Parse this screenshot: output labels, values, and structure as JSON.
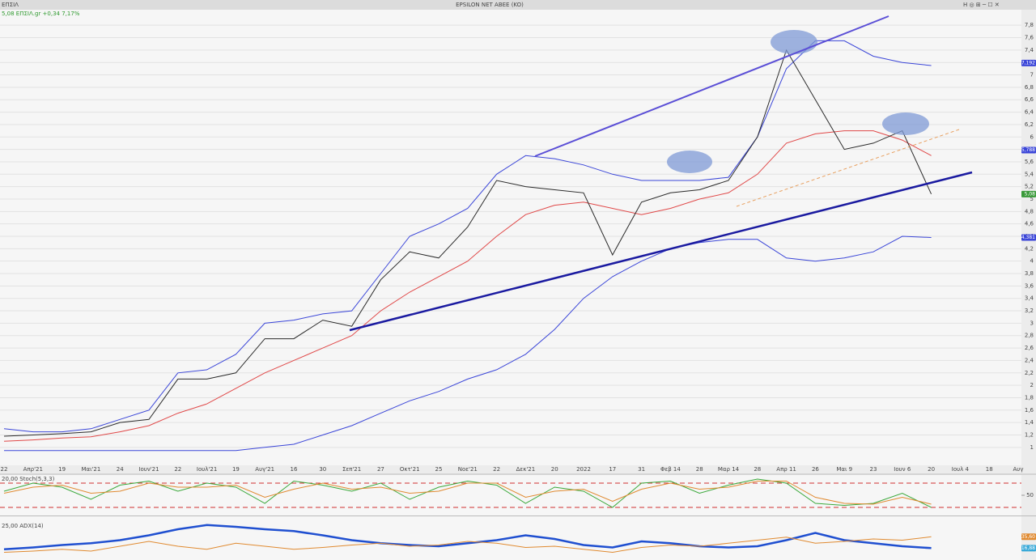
{
  "header": {
    "symbol": "ΕΠΣΙΛ",
    "title": "EPSILON NET ABEE (KO)",
    "legend_text": "5,08 ΕΠΣΙΛ.gr +0,34 7,17%"
  },
  "chart_data": [
    {
      "type": "line",
      "categories": [
        "22",
        "Απρ'21",
        "19",
        "Μαι'21",
        "24",
        "Ιουν'21",
        "22",
        "Ιουλ'21",
        "19",
        "Αυγ'21",
        "16",
        "30",
        "Σεπ'21",
        "27",
        "Οκτ'21",
        "25",
        "Νοε'21",
        "22",
        "Δεκ'21",
        "20",
        "2022",
        "17",
        "31",
        "Φεβ 14",
        "28",
        "Μαρ 14",
        "28",
        "Απρ 11",
        "26",
        "Μαι 9",
        "23",
        "Ιουν 6",
        "20",
        "Ιουλ 4",
        "18",
        "Αυγ"
      ],
      "ylim": [
        0.75,
        8.05
      ],
      "yticks": [
        1,
        {
          "value": 1.2,
          "label": "1,2"
        },
        {
          "value": 1.4,
          "label": "1,4"
        },
        {
          "value": 1.6,
          "label": "1,6"
        },
        {
          "value": 1.8,
          "label": "1,8"
        },
        2,
        {
          "value": 2.2,
          "label": "2,2"
        },
        {
          "value": 2.4,
          "label": "2,4"
        },
        {
          "value": 2.6,
          "label": "2,6"
        },
        {
          "value": 2.8,
          "label": "2,8"
        },
        3,
        {
          "value": 3.2,
          "label": "3,2"
        },
        {
          "value": 3.4,
          "label": "3,4"
        },
        {
          "value": 3.6,
          "label": "3,6"
        },
        {
          "value": 3.8,
          "label": "3,8"
        },
        4,
        {
          "value": 4.2,
          "label": "4,2"
        },
        {
          "value": 4.4,
          "label": "4,4"
        },
        {
          "value": 4.6,
          "label": "4,6"
        },
        {
          "value": 4.8,
          "label": "4,8"
        },
        5,
        {
          "value": 5.2,
          "label": "5,2"
        },
        {
          "value": 5.4,
          "label": "5,4"
        },
        {
          "value": 5.6,
          "label": "5,6"
        },
        {
          "value": 5.8,
          "label": "5,8"
        },
        6,
        {
          "value": 6.2,
          "label": "6,2"
        },
        {
          "value": 6.4,
          "label": "6,4"
        },
        {
          "value": 6.6,
          "label": "6,6"
        },
        {
          "value": 6.8,
          "label": "6,8"
        },
        7,
        {
          "value": 7.2,
          "label": "7,2"
        },
        {
          "value": 7.4,
          "label": "7,4"
        },
        {
          "value": 7.6,
          "label": "7,6"
        },
        {
          "value": 7.8,
          "label": "7,8"
        }
      ],
      "grid": true,
      "series": [
        {
          "color": "#3b46d8",
          "values": [
            1.3,
            1.25,
            1.25,
            1.3,
            1.45,
            1.6,
            2.2,
            2.25,
            2.5,
            3.0,
            3.05,
            3.15,
            3.2,
            3.8,
            4.4,
            4.6,
            4.85,
            5.4,
            5.7,
            5.65,
            5.55,
            5.4,
            5.3,
            5.3,
            5.3,
            5.35,
            6.0,
            7.1,
            7.55,
            7.55,
            7.3,
            7.2,
            7.15,
            null,
            null,
            null
          ]
        },
        {
          "color": "#3b46d8",
          "values": [
            0.95,
            0.95,
            0.95,
            0.95,
            0.95,
            0.95,
            0.95,
            0.95,
            0.95,
            1.0,
            1.05,
            1.2,
            1.35,
            1.55,
            1.75,
            1.9,
            2.1,
            2.25,
            2.5,
            2.9,
            3.4,
            3.75,
            4.0,
            4.2,
            4.3,
            4.35,
            4.35,
            4.05,
            4.0,
            4.05,
            4.15,
            4.4,
            4.38,
            null,
            null,
            null
          ]
        },
        {
          "color": "#e04848",
          "values": [
            1.1,
            1.12,
            1.15,
            1.17,
            1.25,
            1.35,
            1.55,
            1.7,
            1.95,
            2.2,
            2.4,
            2.6,
            2.8,
            3.2,
            3.5,
            3.75,
            4.0,
            4.4,
            4.75,
            4.9,
            4.95,
            4.85,
            4.75,
            4.85,
            5.0,
            5.1,
            5.4,
            5.9,
            6.05,
            6.1,
            6.1,
            5.95,
            5.7,
            null,
            null,
            null
          ]
        },
        {
          "color": "#2a2a2a",
          "values": [
            1.18,
            1.2,
            1.22,
            1.25,
            1.4,
            1.45,
            2.1,
            2.1,
            2.2,
            2.75,
            2.75,
            3.05,
            2.95,
            3.7,
            4.15,
            4.05,
            4.55,
            5.3,
            5.2,
            5.15,
            5.1,
            4.1,
            4.95,
            5.1,
            5.15,
            5.3,
            6.0,
            7.4,
            6.6,
            5.8,
            5.9,
            6.1,
            5.08,
            null,
            null,
            null
          ]
        }
      ],
      "badges": [
        {
          "value": 7.192,
          "label": "7,192",
          "color": "#3b46d8"
        },
        {
          "value": 5.788,
          "label": "5,788",
          "color": "#3b46d8"
        },
        {
          "value": 5.08,
          "label": "5,08",
          "color": "#3a9a3a"
        },
        {
          "value": 4.381,
          "label": "4,381",
          "color": "#3b46d8"
        }
      ]
    },
    {
      "type": "line",
      "title": "20,00 Stoch(5,3,3)",
      "ylim": [
        0,
        100
      ],
      "yticks": [
        50
      ],
      "reference_lines": [
        80,
        20
      ],
      "series": [
        {
          "color": "#3aa83a",
          "values": [
            60,
            80,
            70,
            40,
            75,
            85,
            60,
            80,
            70,
            30,
            85,
            75,
            60,
            80,
            40,
            70,
            85,
            75,
            30,
            70,
            60,
            20,
            80,
            85,
            55,
            75,
            90,
            80,
            30,
            25,
            30,
            55,
            20,
            null,
            null,
            null
          ]
        },
        {
          "color": "#e08a30",
          "values": [
            55,
            70,
            75,
            55,
            60,
            80,
            70,
            70,
            75,
            45,
            65,
            80,
            65,
            70,
            55,
            60,
            80,
            80,
            45,
            60,
            65,
            35,
            65,
            80,
            65,
            70,
            85,
            85,
            45,
            30,
            28,
            45,
            28,
            null,
            null,
            null
          ]
        }
      ]
    },
    {
      "type": "line",
      "title": "25,00 ADX(14)",
      "ylim": [
        0,
        60
      ],
      "series": [
        {
          "color": "#1f4fd0",
          "width": 2.5,
          "values": [
            15,
            18,
            22,
            25,
            30,
            38,
            48,
            55,
            52,
            48,
            45,
            38,
            30,
            25,
            22,
            20,
            25,
            30,
            38,
            32,
            22,
            18,
            28,
            25,
            20,
            18,
            20,
            30,
            42,
            30,
            25,
            20,
            16.88,
            null,
            null,
            null
          ]
        },
        {
          "color": "#e08a30",
          "width": 1,
          "values": [
            10,
            12,
            15,
            12,
            20,
            28,
            20,
            15,
            25,
            20,
            15,
            18,
            22,
            25,
            20,
            22,
            28,
            25,
            18,
            20,
            15,
            10,
            18,
            22,
            20,
            25,
            30,
            35,
            25,
            28,
            32,
            30,
            35.6,
            null,
            null,
            null
          ]
        }
      ],
      "badges": [
        {
          "value": 35.6,
          "label": "35,60",
          "color": "#e08a30"
        },
        {
          "value": 16.88,
          "label": "16,88",
          "color": "#39a9d8"
        }
      ]
    }
  ]
}
